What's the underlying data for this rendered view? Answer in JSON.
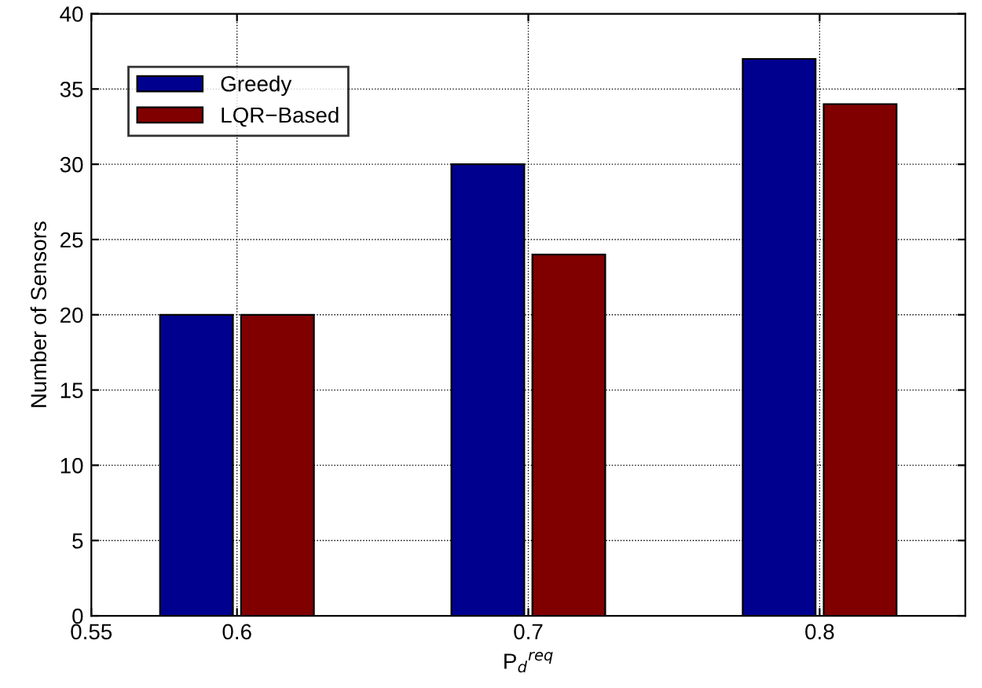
{
  "chart_data": {
    "type": "bar",
    "xlabel": "P$_{d}$$^{req}$",
    "ylabel": "Number of Sensors",
    "x": [
      0.6,
      0.7,
      0.8
    ],
    "series": [
      {
        "name": "Greedy",
        "color": "#00008f",
        "values": [
          20,
          30,
          37
        ]
      },
      {
        "name": "LQR−Based",
        "color": "#800000",
        "values": [
          20,
          24,
          34
        ]
      }
    ],
    "xlim": [
      0.55,
      0.85
    ],
    "xticks": [
      0.55,
      0.6,
      0.7,
      0.8
    ],
    "ylim": [
      0,
      40
    ],
    "yticks": [
      0,
      5,
      10,
      15,
      20,
      25,
      30,
      35,
      40
    ],
    "grid": true,
    "legend": "top left",
    "line_style": "dotted"
  }
}
